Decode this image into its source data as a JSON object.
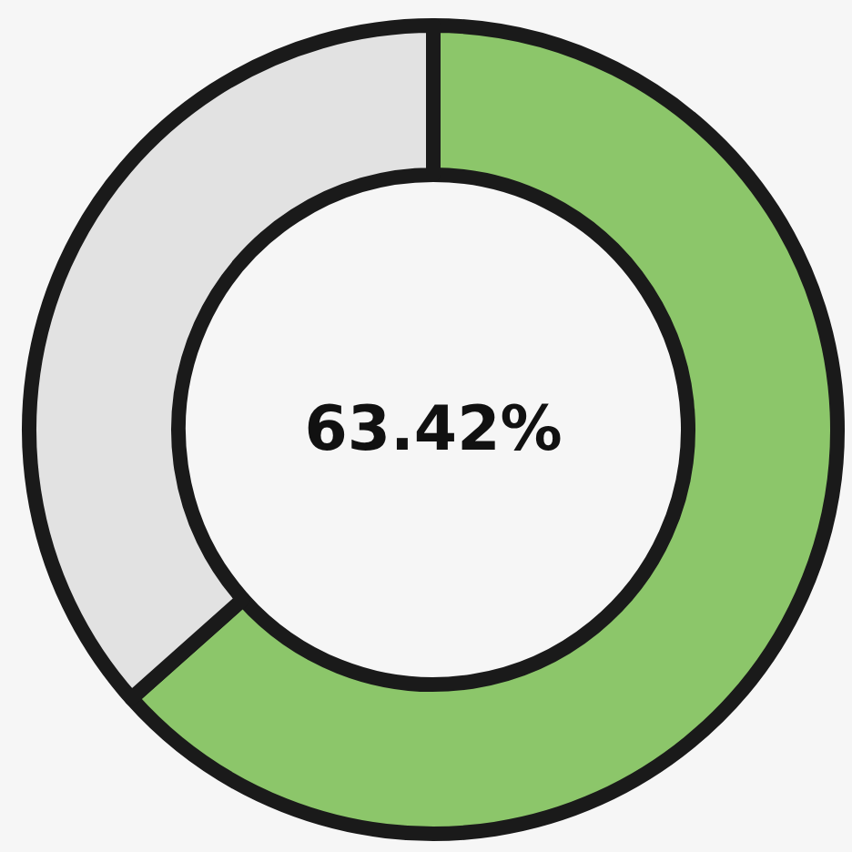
{
  "chart_data": {
    "type": "donut",
    "categories": [
      null,
      null
    ],
    "values": [
      63.42,
      36.58
    ],
    "colors": [
      "#8cc66a",
      "#e2e2e2"
    ],
    "annotations": [
      "63.42%"
    ]
  }
}
